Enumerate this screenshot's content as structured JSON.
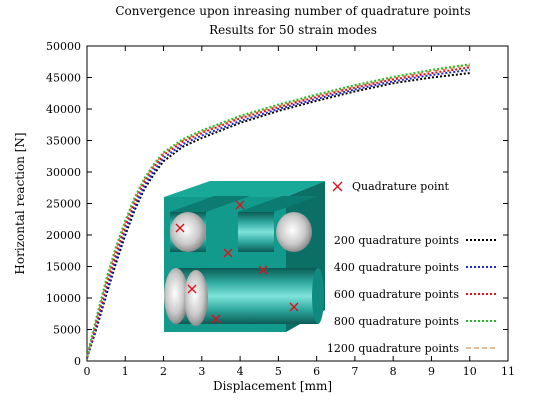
{
  "chart_data": {
    "type": "line",
    "title": "Convergence upon inreasing number of quadrature points",
    "subtitle": "Results for 50 strain modes",
    "xlabel": "Displacement [mm]",
    "ylabel": "Horizontal reaction [N]",
    "xlim": [
      0,
      11
    ],
    "ylim": [
      0,
      50000
    ],
    "xticks": [
      0,
      1,
      2,
      3,
      4,
      5,
      6,
      7,
      8,
      9,
      10,
      11
    ],
    "yticks": [
      0,
      5000,
      10000,
      15000,
      20000,
      25000,
      30000,
      35000,
      40000,
      45000,
      50000
    ],
    "grid": false,
    "legend_position": "bottom-right",
    "inset_legend_label": "Quadrature point",
    "x": [
      0,
      0.25,
      0.5,
      0.75,
      1.0,
      1.25,
      1.5,
      1.75,
      2.0,
      2.5,
      3.0,
      4.0,
      5.0,
      6.0,
      7.0,
      8.0,
      9.0,
      10.0
    ],
    "series": [
      {
        "name": "200 quadrature points",
        "color": "#000000",
        "dash": "2,2",
        "values": [
          500,
          5200,
          10400,
          15400,
          20000,
          24000,
          27300,
          29700,
          31700,
          34000,
          35400,
          37800,
          39700,
          41300,
          42800,
          44100,
          45000,
          45700
        ]
      },
      {
        "name": "400 quadrature points",
        "color": "#1f2bd6",
        "dash": "2,2",
        "values": [
          500,
          5600,
          11000,
          16100,
          20700,
          24600,
          27800,
          30200,
          32200,
          34400,
          35800,
          38100,
          40000,
          41600,
          43100,
          44400,
          45400,
          46200
        ]
      },
      {
        "name": "600 quadrature points",
        "color": "#e0101a",
        "dash": "2,2",
        "values": [
          600,
          6200,
          11900,
          17000,
          21500,
          25300,
          28400,
          30800,
          32700,
          34800,
          36200,
          38500,
          40300,
          41900,
          43400,
          44700,
          45700,
          46600
        ]
      },
      {
        "name": "800 quadrature points",
        "color": "#22c022",
        "dash": "2,2",
        "values": [
          700,
          7000,
          12900,
          18000,
          22300,
          26000,
          29000,
          31300,
          33100,
          35200,
          36600,
          38900,
          40700,
          42300,
          43800,
          45100,
          46200,
          47100
        ]
      },
      {
        "name": "1200 quadrature points",
        "color": "#c87a3a",
        "dash": "5,3",
        "values": [
          650,
          6700,
          12500,
          17600,
          22000,
          25700,
          28800,
          31100,
          33000,
          35000,
          36400,
          38700,
          40500,
          42100,
          43600,
          44900,
          46000,
          46900
        ]
      }
    ]
  }
}
